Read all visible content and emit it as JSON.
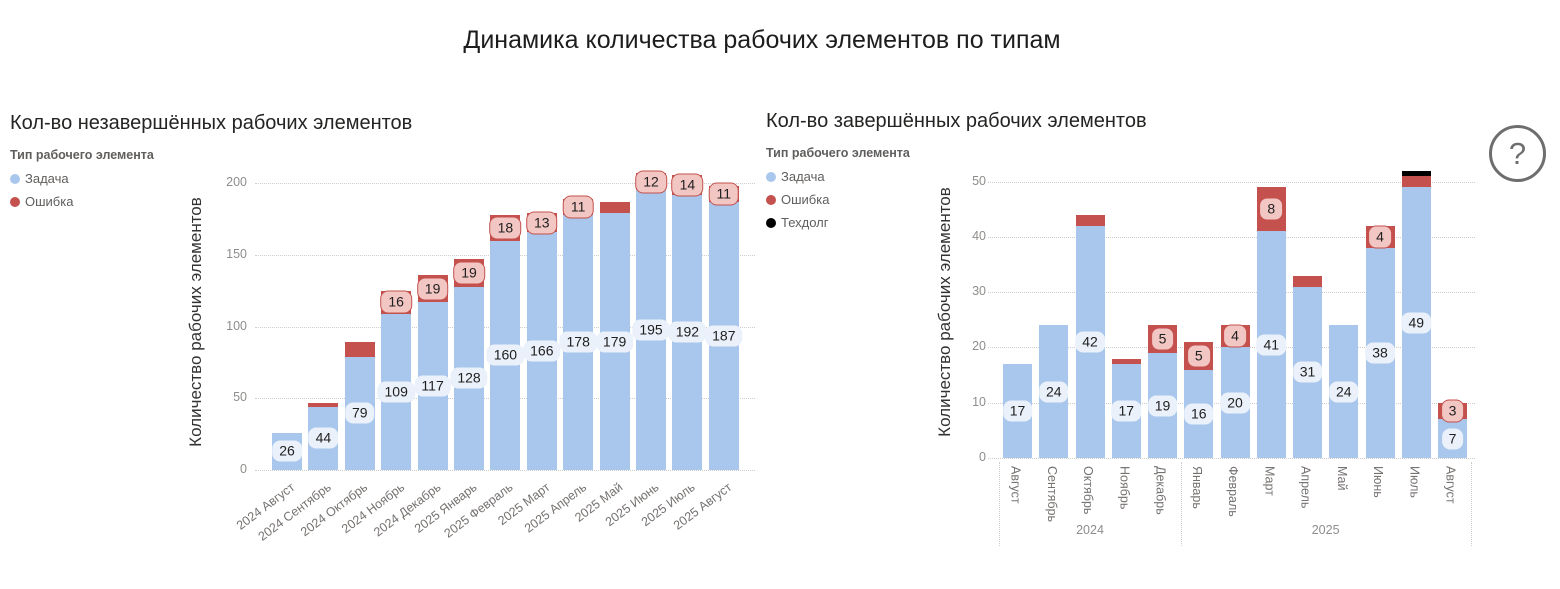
{
  "page": {
    "title": "Динамика количества рабочих элементов по типам",
    "help_glyph": "?"
  },
  "chart_data": [
    {
      "type": "bar",
      "stacked": true,
      "title": "Кол-во незавершённых рабочих элементов",
      "legend_title": "Тип рабочего элемента",
      "legend_position": "top-left",
      "ylabel": "Количество рабочих элементов",
      "grid": "dotted-horizontal",
      "yticks": [
        0,
        50,
        100,
        150,
        200
      ],
      "ylim": [
        0,
        210
      ],
      "categories": [
        "2024 Август",
        "2024 Сентябрь",
        "2024 Октябрь",
        "2024 Ноябрь",
        "2024 Декабрь",
        "2025 Январь",
        "2025 Февраль",
        "2025 Март",
        "2025 Апрель",
        "2025 Май",
        "2025 Июнь",
        "2025 Июль",
        "2025 Август"
      ],
      "series": [
        {
          "id": "task",
          "name": "Задача",
          "color": "#a9c7ec",
          "label_bg": "#eaf1fa",
          "label_border": "",
          "values": [
            26,
            44,
            79,
            109,
            117,
            128,
            160,
            166,
            178,
            179,
            195,
            192,
            187
          ],
          "labels": [
            26,
            44,
            79,
            109,
            117,
            128,
            160,
            166,
            178,
            179,
            195,
            192,
            187
          ]
        },
        {
          "id": "bug",
          "name": "Ошибка",
          "color": "#c4514d",
          "label_bg": "#f2c6c3",
          "label_border": "#c4514d",
          "values": [
            0,
            3,
            10,
            16,
            19,
            19,
            18,
            13,
            11,
            8,
            12,
            14,
            11
          ],
          "labels": [
            null,
            null,
            null,
            16,
            19,
            19,
            18,
            13,
            11,
            null,
            12,
            14,
            11
          ]
        }
      ]
    },
    {
      "type": "bar",
      "stacked": true,
      "title": "Кол-во завершённых рабочих элементов",
      "legend_title": "Тип рабочего элемента",
      "legend_position": "top-left",
      "ylabel": "Количество рабочих элементов",
      "grid": "dotted-horizontal",
      "yticks": [
        0,
        10,
        20,
        30,
        40,
        50
      ],
      "ylim": [
        0,
        54
      ],
      "categories": [
        "Август",
        "Сентябрь",
        "Октябрь",
        "Ноябрь",
        "Декабрь",
        "Январь",
        "Февраль",
        "Март",
        "Апрель",
        "Май",
        "Июнь",
        "Июль",
        "Август"
      ],
      "category_groups": [
        {
          "label": "2024",
          "start": 0,
          "end": 4
        },
        {
          "label": "2025",
          "start": 5,
          "end": 12
        }
      ],
      "series": [
        {
          "id": "task",
          "name": "Задача",
          "color": "#a9c7ec",
          "label_bg": "#eaf1fa",
          "label_border": "",
          "values": [
            17,
            24,
            42,
            17,
            19,
            16,
            20,
            41,
            31,
            24,
            38,
            49,
            7
          ],
          "labels": [
            17,
            24,
            42,
            17,
            19,
            16,
            20,
            41,
            31,
            24,
            38,
            49,
            7
          ]
        },
        {
          "id": "bug",
          "name": "Ошибка",
          "color": "#c4514d",
          "label_bg": "#f2c6c3",
          "label_border": "#c4514d",
          "values": [
            0,
            0,
            2,
            1,
            5,
            5,
            4,
            8,
            2,
            0,
            4,
            2,
            3
          ],
          "labels": [
            null,
            null,
            null,
            null,
            5,
            5,
            4,
            8,
            null,
            null,
            4,
            null,
            3
          ]
        },
        {
          "id": "techdebt",
          "name": "Техдолг",
          "color": "#000000",
          "label_bg": "#e8e8e8",
          "label_border": "",
          "values": [
            0,
            0,
            0,
            0,
            0,
            0,
            0,
            0,
            0,
            0,
            0,
            1,
            0
          ],
          "labels": [
            null,
            null,
            null,
            null,
            null,
            null,
            null,
            null,
            null,
            null,
            null,
            null,
            null
          ]
        }
      ]
    }
  ]
}
